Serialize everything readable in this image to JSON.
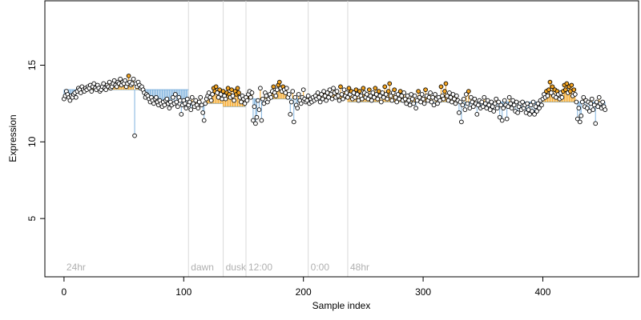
{
  "chart_data": {
    "type": "scatter",
    "title": "",
    "xlabel": "Sample index",
    "ylabel": "Expression",
    "xlim": [
      -16,
      480
    ],
    "ylim": [
      1.2,
      19.2
    ],
    "xticks": [
      "0",
      "100",
      "200",
      "300",
      "400"
    ],
    "xtick_values": [
      0,
      100,
      200,
      300,
      400
    ],
    "yticks": [
      "5",
      "10",
      "15"
    ],
    "ytick_values": [
      5,
      10,
      15
    ],
    "grid": false,
    "legend": "none",
    "colors": {
      "point_fill": "#ffffff",
      "point_stroke": "#000000",
      "above_stem": "#f5a623",
      "below_stem": "#7fb2de",
      "marked_point_fill": "#f5a623",
      "separator": "#d9d9d9",
      "phase_label": "#b0b0b0",
      "frame": "#000000"
    },
    "phase_markers": [
      {
        "label": "24hr",
        "x": 0
      },
      {
        "label": "dawn",
        "x": 104
      },
      {
        "label": "dusk",
        "x": 133
      },
      {
        "label": "12:00",
        "x": 152
      },
      {
        "label": "0:00",
        "x": 204
      },
      {
        "label": "48hr",
        "x": 237
      }
    ],
    "segments": [
      {
        "x_start": 0,
        "x_end": 104,
        "level": 13.4
      },
      {
        "x_start": 104,
        "x_end": 133,
        "level": 12.5
      },
      {
        "x_start": 133,
        "x_end": 152,
        "level": 12.3
      },
      {
        "x_start": 152,
        "x_end": 204,
        "level": 12.8
      },
      {
        "x_start": 204,
        "x_end": 237,
        "level": 12.8
      },
      {
        "x_start": 237,
        "x_end": 460,
        "level": 12.6
      }
    ],
    "series": [
      {
        "values": [
          12.8,
          13.0,
          13.3,
          13.1,
          12.9,
          12.7,
          13.0,
          12.9,
          13.1,
          13.2,
          12.9,
          13.3,
          13.5,
          13.4,
          13.2,
          13.6,
          13.4,
          13.3,
          13.5,
          13.4,
          13.6,
          13.5,
          13.7,
          13.3,
          13.6,
          13.8,
          13.5,
          13.4,
          13.7,
          13.5,
          13.3,
          13.4,
          13.6,
          13.8,
          13.5,
          13.4,
          13.7,
          13.6,
          13.9,
          13.5,
          13.6,
          13.8,
          14.0,
          13.7,
          13.6,
          13.9,
          13.8,
          14.1,
          13.7,
          13.9,
          13.8,
          14.0,
          13.6,
          13.8,
          14.3,
          13.9,
          13.7,
          13.8,
          14.1,
          10.4,
          13.8,
          13.6,
          13.9,
          13.7,
          13.5,
          13.6,
          13.4,
          13.2,
          12.9,
          13.1,
          13.0,
          12.8,
          12.6,
          12.9,
          12.7,
          12.5,
          12.8,
          12.9,
          12.6,
          12.4,
          12.7,
          12.5,
          12.3,
          12.6,
          12.4,
          12.7,
          12.8,
          12.5,
          12.2,
          12.6,
          12.4,
          12.9,
          12.5,
          13.1,
          12.6,
          12.3,
          12.9,
          12.7,
          11.8,
          12.4,
          12.7,
          12.5,
          12.2,
          12.8,
          12.4,
          12.6,
          12.1,
          12.9,
          12.5,
          12.3,
          12.7,
          12.4,
          12.2,
          12.6,
          12.9,
          12.4,
          11.9,
          11.4,
          12.5,
          12.8,
          13.0,
          13.2,
          12.9,
          12.7,
          13.1,
          13.5,
          13.3,
          13.6,
          13.2,
          12.9,
          13.4,
          13.1,
          12.8,
          13.3,
          13.0,
          12.8,
          13.2,
          13.5,
          13.1,
          12.9,
          13.4,
          13.0,
          12.7,
          13.3,
          13.1,
          13.5,
          13.2,
          12.9,
          12.6,
          13.0,
          12.8,
          12.5,
          12.9,
          12.7,
          13.1,
          13.3,
          12.9,
          13.2,
          11.4,
          12.3,
          11.2,
          11.6,
          12.7,
          12.1,
          13.5,
          11.4,
          12.8,
          12.5,
          13.2,
          13.0,
          12.6,
          12.8,
          13.1,
          12.9,
          13.3,
          13.6,
          13.2,
          13.0,
          13.4,
          13.7,
          13.9,
          13.5,
          13.3,
          13.6,
          13.4,
          13.2,
          13.5,
          12.9,
          13.1,
          11.8,
          12.6,
          13.3,
          11.3,
          12.9,
          12.4,
          12.2,
          13.1,
          12.7,
          12.5,
          12.9,
          13.4,
          12.8,
          12.6,
          12.7,
          13.0,
          12.5,
          12.8,
          12.6,
          12.9,
          12.7,
          13.0,
          12.8,
          13.2,
          12.9,
          12.6,
          13.1,
          12.8,
          13.3,
          13.0,
          12.7,
          13.2,
          12.9,
          13.4,
          13.1,
          12.8,
          13.5,
          13.2,
          12.9,
          13.3,
          13.0,
          12.7,
          13.6,
          13.1,
          12.8,
          13.4,
          13.0,
          13.2,
          12.9,
          13.5,
          13.1,
          13.3,
          12.8,
          13.2,
          12.9,
          13.4,
          13.1,
          12.7,
          13.3,
          13.0,
          12.8,
          13.5,
          13.2,
          12.9,
          13.1,
          12.8,
          13.4,
          13.0,
          12.7,
          13.2,
          12.9,
          13.5,
          13.1,
          12.8,
          13.3,
          13.0,
          12.6,
          13.2,
          12.9,
          13.6,
          13.1,
          12.8,
          13.3,
          13.8,
          13.0,
          12.7,
          13.2,
          13.4,
          12.9,
          12.6,
          13.1,
          12.8,
          13.3,
          13.0,
          12.7,
          13.2,
          12.8,
          12.5,
          13.0,
          12.7,
          12.4,
          13.1,
          12.8,
          12.5,
          13.0,
          12.2,
          12.7,
          13.3,
          12.9,
          12.6,
          13.1,
          12.8,
          12.5,
          13.4,
          13.0,
          12.7,
          12.9,
          13.2,
          12.6,
          12.9,
          12.4,
          13.1,
          12.8,
          12.5,
          12.9,
          12.7,
          13.6,
          13.0,
          12.8,
          13.3,
          13.8,
          13.0,
          12.7,
          13.2,
          12.9,
          12.6,
          13.1,
          12.8,
          12.5,
          13.0,
          12.7,
          11.9,
          12.6,
          11.3,
          12.4,
          12.8,
          12.1,
          13.1,
          12.5,
          13.3,
          12.2,
          12.9,
          12.6,
          12.3,
          12.8,
          12.5,
          11.8,
          12.4,
          12.7,
          12.2,
          12.6,
          12.3,
          12.9,
          12.5,
          12.2,
          12.7,
          12.4,
          12.1,
          12.6,
          12.3,
          12.0,
          12.5,
          12.8,
          12.2,
          12.6,
          11.6,
          12.4,
          11.4,
          12.2,
          12.7,
          12.4,
          11.5,
          12.3,
          12.9,
          12.5,
          12.2,
          12.7,
          12.4,
          12.0,
          12.6,
          11.9,
          12.3,
          12.5,
          12.1,
          12.6,
          12.2,
          12.4,
          11.9,
          12.5,
          12.1,
          11.8,
          12.4,
          12.0,
          12.6,
          11.8,
          12.3,
          12.0,
          12.5,
          12.2,
          12.7,
          12.4,
          12.8,
          13.1,
          12.9,
          13.3,
          13.0,
          13.4,
          13.9,
          13.2,
          13.6,
          13.0,
          13.4,
          12.9,
          13.3,
          13.1,
          12.8,
          13.2,
          12.9,
          13.3,
          13.7,
          13.4,
          13.8,
          13.2,
          13.6,
          13.3,
          13.7,
          13.0,
          13.4,
          13.1,
          12.6,
          11.5,
          12.2,
          11.3,
          11.7,
          12.6,
          12.9,
          12.3,
          12.7,
          12.2,
          12.6,
          12.0,
          12.5,
          12.8,
          12.1,
          12.4,
          11.2,
          12.6,
          12.3,
          12.9,
          12.5,
          12.2,
          12.6,
          12.3,
          12.1
        ]
      }
    ]
  }
}
